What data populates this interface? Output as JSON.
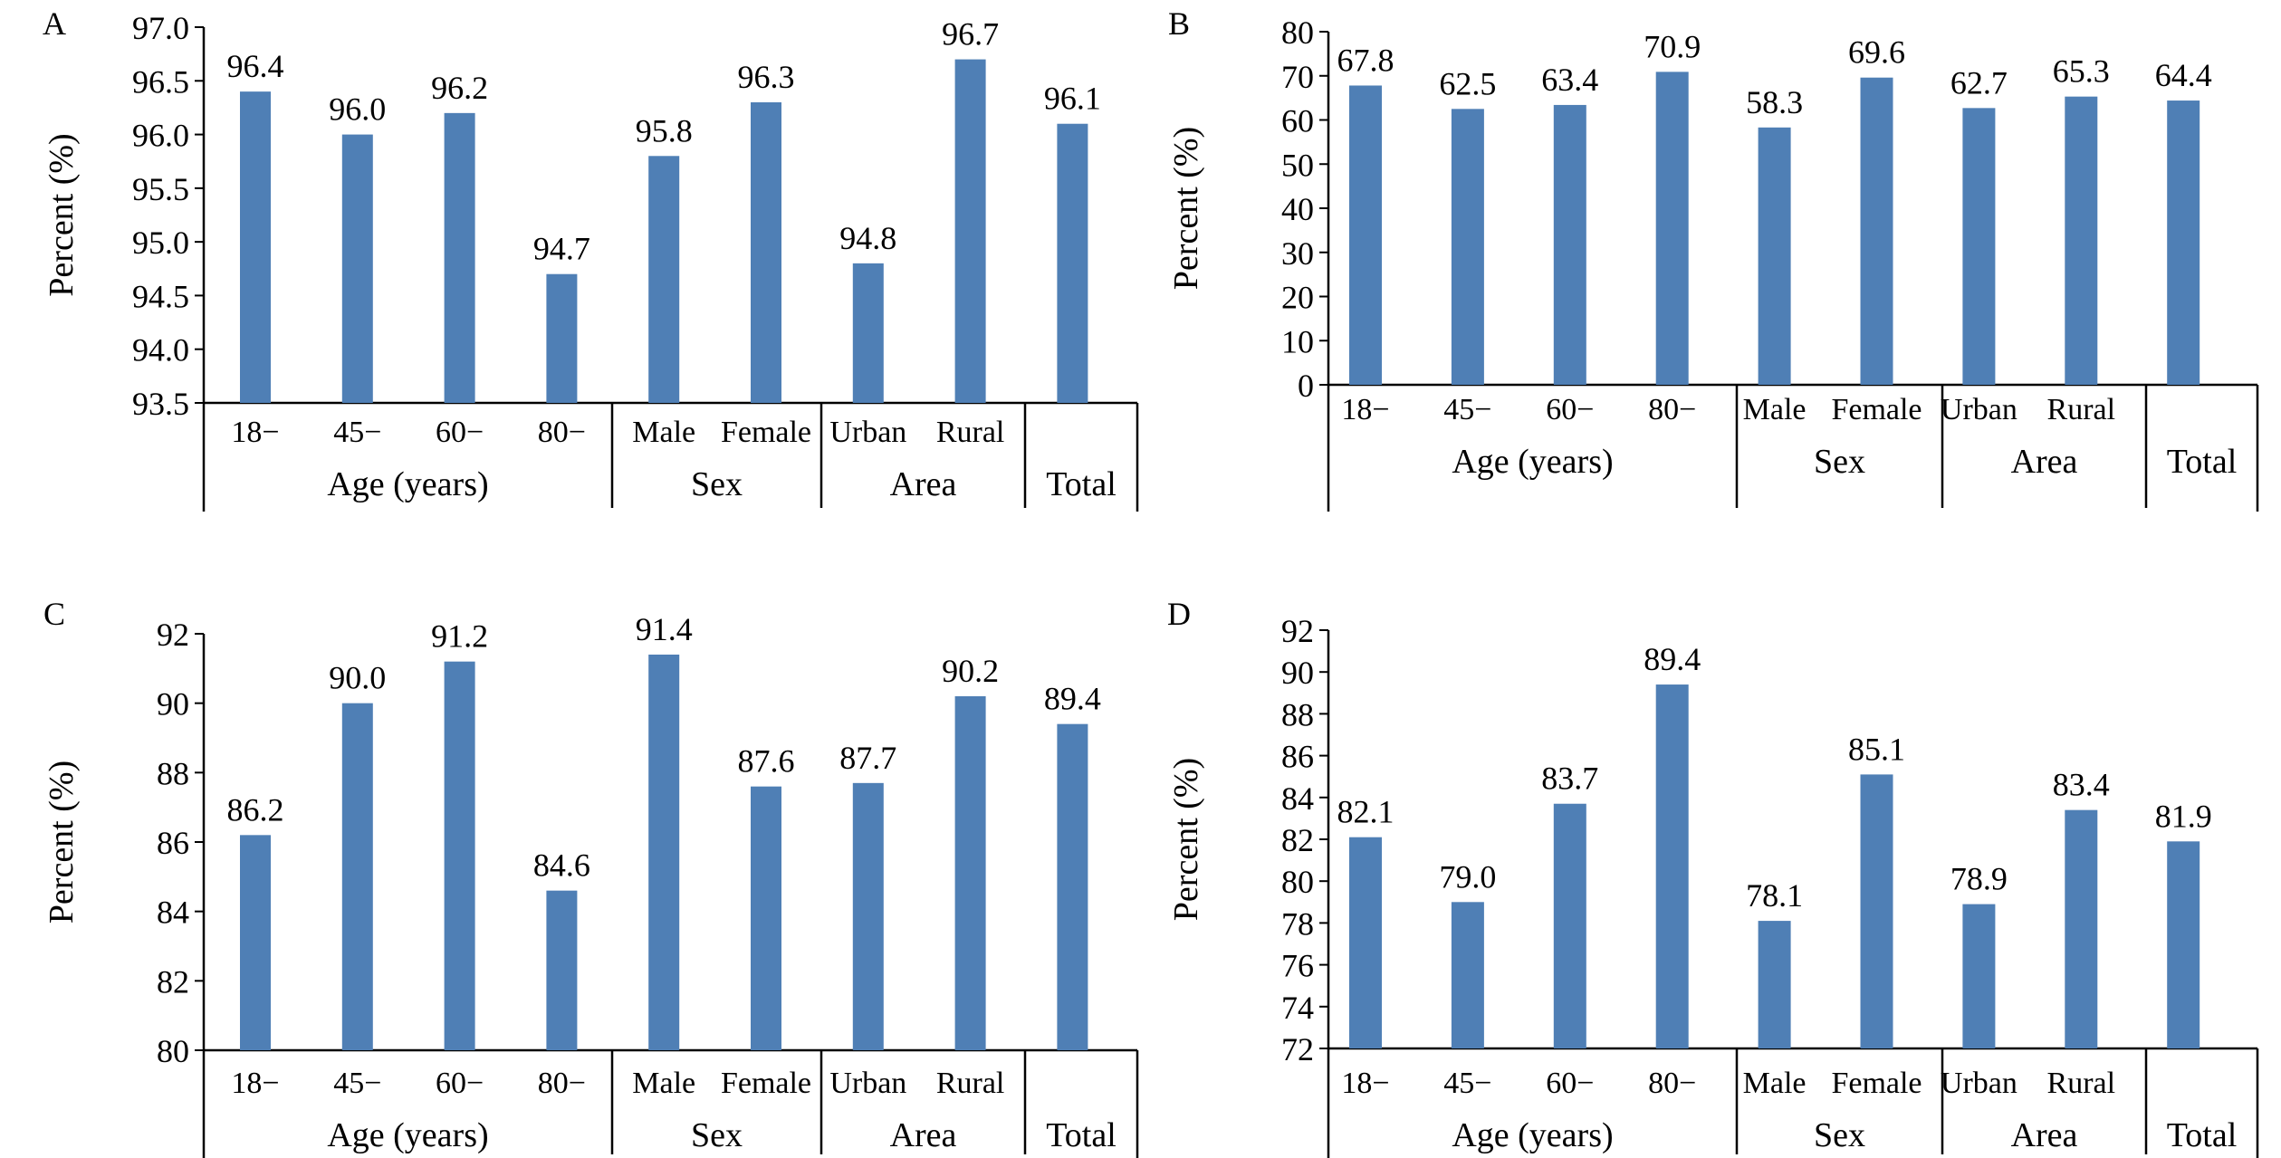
{
  "bar_color": "#4f7fb5",
  "chart_data": [
    {
      "panel": "A",
      "type": "bar",
      "ylabel": "Percent (%)",
      "ylim": [
        93.5,
        97.0
      ],
      "yticks": [
        "93.5",
        "94.0",
        "94.5",
        "95.0",
        "95.5",
        "96.0",
        "96.5",
        "97.0"
      ],
      "categories": [
        "18−",
        "45−",
        "60−",
        "80−",
        "Male",
        "Female",
        "Urban",
        "Rural",
        ""
      ],
      "values": [
        96.4,
        96.0,
        96.2,
        94.7,
        95.8,
        96.3,
        94.8,
        96.7,
        96.1
      ],
      "value_labels": [
        "96.4",
        "96.0",
        "96.2",
        "94.7",
        "95.8",
        "96.3",
        "94.8",
        "96.7",
        "96.1"
      ],
      "groups": [
        "Age (years)",
        "Sex",
        "Area",
        "Total"
      ]
    },
    {
      "panel": "B",
      "type": "bar",
      "ylabel": "Percent (%)",
      "ylim": [
        0,
        80
      ],
      "yticks": [
        "0",
        "10",
        "20",
        "30",
        "40",
        "50",
        "60",
        "70",
        "80"
      ],
      "categories": [
        "18−",
        "45−",
        "60−",
        "80−",
        "Male",
        "Female",
        "Urban",
        "Rural",
        ""
      ],
      "values": [
        67.8,
        62.5,
        63.4,
        70.9,
        58.3,
        69.6,
        62.7,
        65.3,
        64.4
      ],
      "value_labels": [
        "67.8",
        "62.5",
        "63.4",
        "70.9",
        "58.3",
        "69.6",
        "62.7",
        "65.3",
        "64.4"
      ],
      "groups": [
        "Age (years)",
        "Sex",
        "Area",
        "Total"
      ]
    },
    {
      "panel": "C",
      "type": "bar",
      "ylabel": "Percent (%)",
      "ylim": [
        80,
        92
      ],
      "yticks": [
        "80",
        "82",
        "84",
        "86",
        "88",
        "90",
        "92"
      ],
      "categories": [
        "18−",
        "45−",
        "60−",
        "80−",
        "Male",
        "Female",
        "Urban",
        "Rural",
        ""
      ],
      "values": [
        86.2,
        90.0,
        91.2,
        84.6,
        91.4,
        87.6,
        87.7,
        90.2,
        89.4
      ],
      "value_labels": [
        "86.2",
        "90.0",
        "91.2",
        "84.6",
        "91.4",
        "87.6",
        "87.7",
        "90.2",
        "89.4"
      ],
      "groups": [
        "Age (years)",
        "Sex",
        "Area",
        "Total"
      ]
    },
    {
      "panel": "D",
      "type": "bar",
      "ylabel": "Percent (%)",
      "ylim": [
        72,
        92
      ],
      "yticks": [
        "72",
        "74",
        "76",
        "78",
        "80",
        "82",
        "84",
        "86",
        "88",
        "90",
        "92"
      ],
      "categories": [
        "18−",
        "45−",
        "60−",
        "80−",
        "Male",
        "Female",
        "Urban",
        "Rural",
        ""
      ],
      "values": [
        82.1,
        79.0,
        83.7,
        89.4,
        78.1,
        85.1,
        78.9,
        83.4,
        81.9
      ],
      "value_labels": [
        "82.1",
        "79.0",
        "83.7",
        "89.4",
        "78.1",
        "85.1",
        "78.9",
        "83.4",
        "81.9"
      ],
      "groups": [
        "Age (years)",
        "Sex",
        "Area",
        "Total"
      ]
    }
  ]
}
